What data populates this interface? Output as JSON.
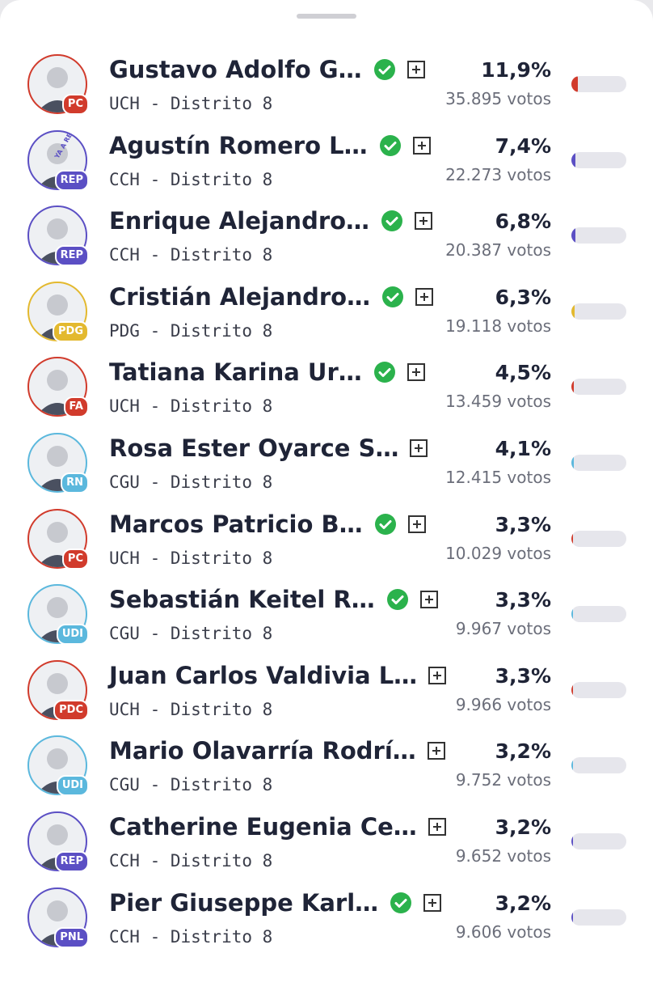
{
  "candidates": [
    {
      "name": "Gustavo Adolfo G…",
      "party": "PC",
      "color": "#d13b2c",
      "district": "UCH - Distrito 8",
      "percent": 11.9,
      "percent_label": "11,9%",
      "votes": "35.895 votos",
      "elected": true
    },
    {
      "name": "Agustín Romero L…",
      "party": "REP",
      "color": "#5b4fc4",
      "district": "CCH - Distrito 8",
      "percent": 7.4,
      "percent_label": "7,4%",
      "votes": "22.273 votos",
      "elected": true,
      "tag": "YA A RELECCI"
    },
    {
      "name": "Enrique Alejandro…",
      "party": "REP",
      "color": "#5b4fc4",
      "district": "CCH - Distrito 8",
      "percent": 6.8,
      "percent_label": "6,8%",
      "votes": "20.387 votos",
      "elected": true
    },
    {
      "name": "Cristián Alejandro…",
      "party": "PDG",
      "color": "#e3b92f",
      "district": "PDG - Distrito 8",
      "percent": 6.3,
      "percent_label": "6,3%",
      "votes": "19.118 votos",
      "elected": true
    },
    {
      "name": "Tatiana Karina Ur…",
      "party": "FA",
      "color": "#d13b2c",
      "district": "UCH - Distrito 8",
      "percent": 4.5,
      "percent_label": "4,5%",
      "votes": "13.459 votos",
      "elected": true
    },
    {
      "name": "Rosa Ester Oyarce S…",
      "party": "RN",
      "color": "#5bb8dd",
      "district": "CGU - Distrito 8",
      "percent": 4.1,
      "percent_label": "4,1%",
      "votes": "12.415 votos",
      "elected": false
    },
    {
      "name": "Marcos Patricio B…",
      "party": "PC",
      "color": "#d13b2c",
      "district": "UCH - Distrito 8",
      "percent": 3.3,
      "percent_label": "3,3%",
      "votes": "10.029 votos",
      "elected": true
    },
    {
      "name": "Sebastián Keitel R…",
      "party": "UDI",
      "color": "#5bb8dd",
      "district": "CGU - Distrito 8",
      "percent": 3.3,
      "percent_label": "3,3%",
      "votes": "9.967 votos",
      "elected": true
    },
    {
      "name": "Juan Carlos Valdivia L…",
      "party": "PDC",
      "color": "#d13b2c",
      "district": "UCH - Distrito 8",
      "percent": 3.3,
      "percent_label": "3,3%",
      "votes": "9.966 votos",
      "elected": false
    },
    {
      "name": "Mario Olavarría Rodrí…",
      "party": "UDI",
      "color": "#5bb8dd",
      "district": "CGU - Distrito 8",
      "percent": 3.2,
      "percent_label": "3,2%",
      "votes": "9.752 votos",
      "elected": false
    },
    {
      "name": "Catherine Eugenia Ce…",
      "party": "REP",
      "color": "#5b4fc4",
      "district": "CCH - Distrito 8",
      "percent": 3.2,
      "percent_label": "3,2%",
      "votes": "9.652 votos",
      "elected": false
    },
    {
      "name": "Pier Giuseppe Karl…",
      "party": "PNL",
      "color": "#5b4fc4",
      "district": "CCH - Distrito 8",
      "percent": 3.2,
      "percent_label": "3,2%",
      "votes": "9.606 votos",
      "elected": true
    }
  ]
}
